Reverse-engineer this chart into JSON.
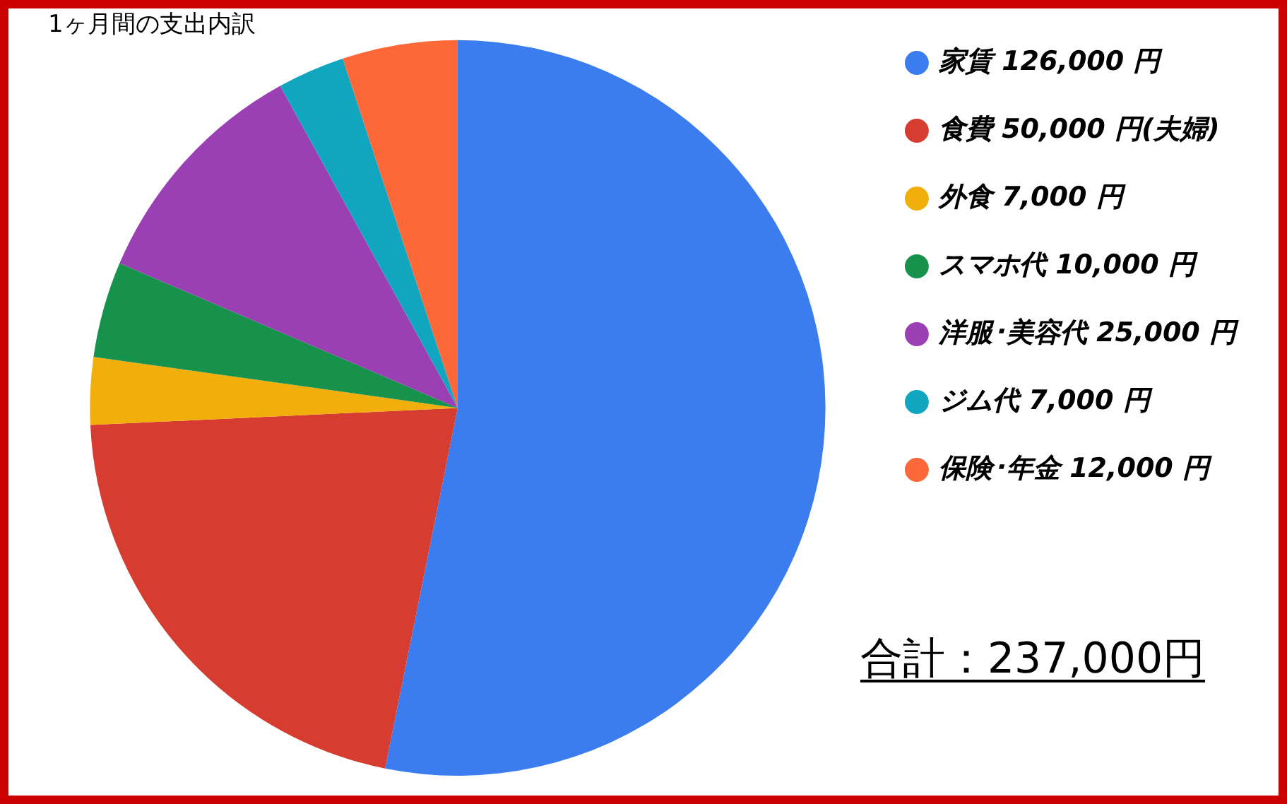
{
  "chart_data": {
    "type": "pie",
    "title": "1ヶ月間の支出内訳",
    "categories": [
      "家賃 126,000 円",
      "食費 50,000 円(夫婦)",
      "外食 7,000 円",
      "スマホ代 10,000 円",
      "洋服･美容代 25,000 円",
      "ジム代 7,000 円",
      "保険･年金 12,000 円"
    ],
    "values": [
      126000,
      50000,
      7000,
      10000,
      25000,
      7000,
      12000
    ],
    "colors": [
      "#3b7cee",
      "#d63d30",
      "#f2ae0b",
      "#17924d",
      "#9a3fb4",
      "#10a6c0",
      "#fd6839"
    ],
    "legend": "top right",
    "annotations": [
      "合計：237,000円"
    ]
  }
}
